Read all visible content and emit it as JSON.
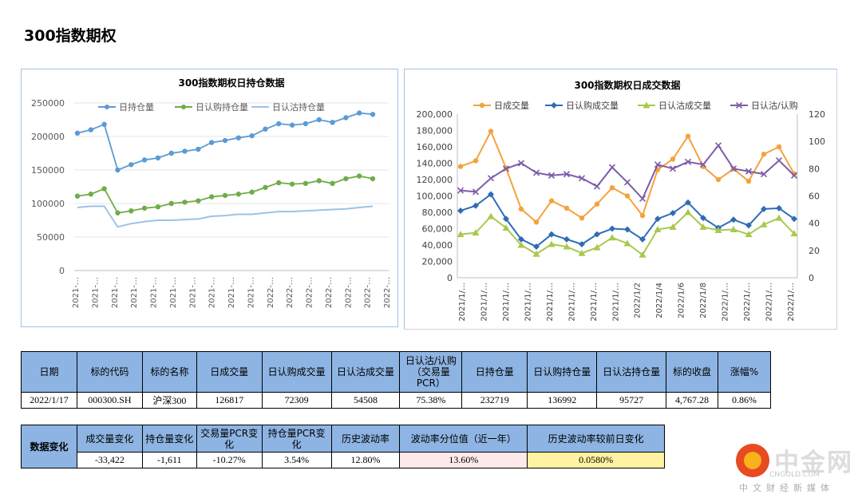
{
  "page_title": "300指数期权",
  "chart_data": [
    {
      "type": "line",
      "title": "300指数期权日持仓数据",
      "ylim": [
        0,
        250000
      ],
      "yticks": [
        "250000",
        "200000",
        "150000",
        "100000",
        "50000",
        "0"
      ],
      "xtick_labels": [
        "2021-…",
        "2021-…",
        "2021-…",
        "2021-…",
        "2021-…",
        "2021-…",
        "2021-…",
        "2021-…",
        "2021-…",
        "2021-…",
        "2022-…",
        "2022-…",
        "2022-…",
        "2022-…",
        "2022-…",
        "2022-…",
        "2022-…"
      ],
      "legend_position": "top",
      "series": [
        {
          "name": "日持仓量",
          "color": "#5b9bd5",
          "values": [
            205000,
            210000,
            218000,
            150000,
            158000,
            165000,
            168000,
            175000,
            178000,
            181000,
            191000,
            194000,
            198000,
            201000,
            211000,
            219000,
            217000,
            219000,
            225000,
            221000,
            228000,
            235000,
            233000
          ]
        },
        {
          "name": "日认购持仓量",
          "color": "#70ad47",
          "values": [
            111000,
            114000,
            122000,
            86000,
            89000,
            93000,
            95000,
            100000,
            102000,
            104000,
            110000,
            112000,
            114000,
            117000,
            124000,
            131000,
            129000,
            130000,
            134000,
            130000,
            137000,
            141000,
            137000
          ]
        },
        {
          "name": "日认沽持仓量",
          "color": "#9dc3e6",
          "values": [
            94000,
            96000,
            96000,
            65000,
            70000,
            73000,
            75000,
            75000,
            76000,
            77000,
            81000,
            82000,
            84000,
            84000,
            86000,
            88000,
            88000,
            89000,
            90000,
            91000,
            92000,
            94000,
            96000
          ]
        }
      ]
    },
    {
      "type": "line",
      "title": "300指数期权日成交数据",
      "ylim": [
        0,
        200000
      ],
      "y2lim": [
        0,
        120
      ],
      "yticks": [
        "200,000",
        "180,000",
        "160,000",
        "140,000",
        "120,000",
        "100,000",
        "80,000",
        "60,000",
        "40,000",
        "20,000",
        "0"
      ],
      "y2ticks": [
        "120",
        "100",
        "80",
        "60",
        "40",
        "20",
        "0"
      ],
      "xtick_labels": [
        "2021/1/…",
        "2021/1/…",
        "2021/1/…",
        "2021/1/…",
        "2021/1/…",
        "2021/1/…",
        "2021/1/…",
        "2021/1/…",
        "2022/1/2",
        "2022/1/4",
        "2022/1/6",
        "2022/1/8",
        "2022/1/…",
        "2022/1/…",
        "2022/1/…",
        "2022/1/…"
      ],
      "legend_position": "top",
      "series": [
        {
          "name": "日成交量",
          "axis": "left",
          "color": "#f4a23c",
          "values": [
            136000,
            143000,
            179000,
            134000,
            84000,
            68000,
            94000,
            85000,
            73000,
            90000,
            110000,
            100000,
            76000,
            132000,
            145000,
            173000,
            136000,
            120000,
            133000,
            118000,
            151000,
            160000,
            127000
          ]
        },
        {
          "name": "日认购成交量",
          "axis": "left",
          "color": "#2e6db5",
          "values": [
            82000,
            88000,
            102000,
            72000,
            47000,
            38000,
            53000,
            47000,
            41000,
            53000,
            60000,
            59000,
            47000,
            72000,
            79000,
            92000,
            73000,
            61000,
            71000,
            64000,
            84000,
            85000,
            72000
          ]
        },
        {
          "name": "日认沽成交量",
          "axis": "left",
          "color": "#a8c94e",
          "values": [
            53000,
            55000,
            75000,
            61000,
            40000,
            29000,
            41000,
            38000,
            30000,
            37000,
            49000,
            42000,
            28000,
            59000,
            62000,
            80000,
            62000,
            58000,
            59000,
            53000,
            65000,
            73000,
            54000
          ]
        },
        {
          "name": "日认沽/认购",
          "axis": "right",
          "color": "#7d5ca8",
          "values": [
            64,
            63,
            73,
            80,
            84,
            77,
            75,
            76,
            73,
            67,
            81,
            70,
            58,
            83,
            80,
            85,
            83,
            97,
            80,
            78,
            76,
            86,
            75
          ]
        }
      ]
    }
  ],
  "table1": {
    "headers": [
      "日期",
      "标的代码",
      "标的名称",
      "日成交量",
      "日认购成交量",
      "日认沽成交量",
      "日认沽/认购（交易量PCR）",
      "日持仓量",
      "日认购持仓量",
      "日认沽持仓量",
      "标的收盘",
      "涨幅%"
    ],
    "values": [
      "2022/1/17",
      "000300.SH",
      "沪深300",
      "126817",
      "72309",
      "54508",
      "75.38%",
      "232719",
      "136992",
      "95727",
      "4,767.28",
      "0.86%"
    ]
  },
  "table2": {
    "row_label": "数据变化",
    "headers": [
      "成交量变化",
      "持仓量变化",
      "交易量PCR变化",
      "持仓量PCR变化",
      "历史波动率",
      "波动率分位值（近一年）",
      "历史波动率较前日变化"
    ],
    "values": [
      "-33,422",
      "-1,611",
      "-10.27%",
      "3.54%",
      "12.80%",
      "13.60%",
      "0.0580%"
    ]
  },
  "watermark": {
    "name": "中金网",
    "url": "CNGOLD.COM",
    "tagline": "中文财经新媒体"
  }
}
